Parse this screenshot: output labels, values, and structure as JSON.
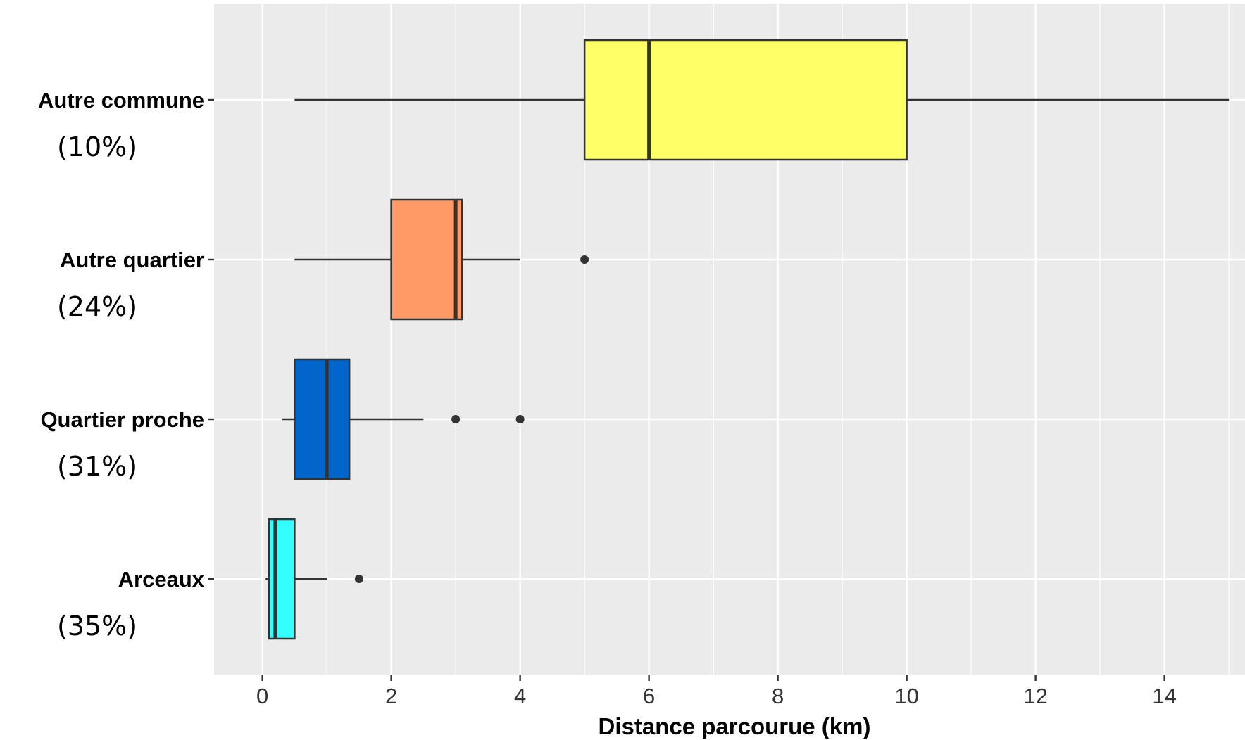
{
  "chart_data": {
    "type": "boxplot",
    "orientation": "horizontal",
    "xlabel": "Distance parcourue (km)",
    "xlim": [
      -0.75,
      15.25
    ],
    "xticks": [
      0,
      2,
      4,
      6,
      8,
      10,
      12,
      14
    ],
    "xtick_labels": [
      "0",
      "2",
      "4",
      "6",
      "8",
      "10",
      "12",
      "14"
    ],
    "grid": true,
    "background": "#EBEBEB",
    "categories": [
      {
        "name": "Autre commune",
        "share": "(10%)",
        "color": "#FFFF66",
        "whisker_low": 0.5,
        "q1": 5,
        "median": 6,
        "q3": 10,
        "whisker_high": 15,
        "outliers": []
      },
      {
        "name": "Autre quartier",
        "share": "(24%)",
        "color": "#FF9966",
        "whisker_low": 0.5,
        "q1": 2,
        "median": 3,
        "q3": 3.1,
        "whisker_high": 4,
        "outliers": [
          5
        ]
      },
      {
        "name": "Quartier proche",
        "share": "(31%)",
        "color": "#0066CC",
        "whisker_low": 0.3,
        "q1": 0.5,
        "median": 1,
        "q3": 1.35,
        "whisker_high": 2.5,
        "outliers": [
          3,
          4
        ]
      },
      {
        "name": "Arceaux",
        "share": "(35%)",
        "color": "#33FFFF",
        "whisker_low": 0.05,
        "q1": 0.1,
        "median": 0.2,
        "q3": 0.5,
        "whisker_high": 1,
        "outliers": [
          1.5
        ]
      }
    ]
  }
}
